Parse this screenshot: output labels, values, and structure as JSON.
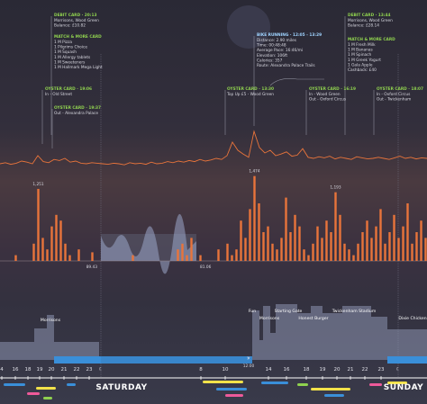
{
  "annotations": [
    {
      "title": "DEBIT CARD · 20:13",
      "lines": [
        "Morrisons, Wood Green",
        "Balance: £10.82"
      ]
    },
    {
      "title": "MATCH & MORE CARD",
      "lines": [
        "1 M Pizza",
        "1 Pilgrims Choice",
        "1 M Squash",
        "1 M Allergy tablets",
        "1 M Sweeteners",
        "1 M Hallmark Mega Light"
      ]
    },
    {
      "title": "OYSTER CARD · 19:06",
      "lines": [
        "In - Old Street"
      ]
    },
    {
      "title": "OYSTER CARD · 19:37",
      "lines": [
        "Out - Alexandra Palace"
      ]
    },
    {
      "title": "BIKE RUNNING · 12:05 - 13:29",
      "lines": [
        "Distance: 2.90 miles",
        "Time: 00:48:48",
        "Average Pace: 16:46/mi",
        "Elevation: 106ft",
        "Calories: 357",
        "Route: Alexandra Palace Trails"
      ]
    },
    {
      "title": "OYSTER CARD · 13:30",
      "lines": [
        "Top Up £5 - Wood Green"
      ]
    },
    {
      "title": "OYSTER CARD · 16:19",
      "lines": [
        "In - Wood Green",
        "Out - Oxford Circus"
      ]
    },
    {
      "title": "OYSTER CARD · 18:07",
      "lines": [
        "In - Oxford Circus",
        "Out - Twickenham"
      ]
    },
    {
      "title": "DEBIT CARD · 13:44",
      "lines": [
        "Morrisons, Wood Green",
        "Balance: £28.14"
      ]
    },
    {
      "title": "MATCH & MORE CARD",
      "lines": [
        "1 M Fresh Milk",
        "1 M Bananas",
        "1 M Spinach",
        "1 M Greek Yogurt",
        "1 Gala Apple",
        "Cashback: £40"
      ]
    }
  ],
  "places": [
    "Morrisons",
    "Fun",
    "Morrisons",
    "Starting Gate",
    "Honest Burger",
    "Twickenham Stadium",
    "Dixie Chicken"
  ],
  "band_labels": [
    "89.43",
    "81.06"
  ],
  "timeline": {
    "ticks": [
      "4",
      "16",
      "18",
      "19",
      "20",
      "21",
      "22",
      "23",
      "8",
      "10",
      "14",
      "16",
      "18",
      "19",
      "20",
      "21",
      "22",
      "23"
    ],
    "days": [
      "SATURDAY",
      "SUNDAY"
    ],
    "noon": "12:00"
  },
  "chart_data": [
    {
      "type": "line",
      "color": "#e8743b",
      "ylim": [
        0,
        100
      ],
      "values": [
        30,
        32,
        29,
        31,
        35,
        33,
        30,
        45,
        34,
        32,
        38,
        36,
        40,
        33,
        35,
        31,
        30,
        32,
        31,
        30,
        29,
        31,
        30,
        28,
        32,
        30,
        31,
        29,
        33,
        30,
        31,
        34,
        32,
        35,
        33,
        36,
        34,
        38,
        35,
        37,
        40,
        38,
        45,
        70,
        55,
        48,
        42,
        90,
        60,
        50,
        55,
        45,
        48,
        52,
        44,
        46,
        58,
        42,
        40,
        43,
        41,
        44,
        39,
        42,
        40,
        38,
        43,
        41,
        39,
        40,
        42,
        40,
        38,
        41,
        44,
        40,
        42,
        39,
        41,
        40
      ]
    },
    {
      "type": "bar",
      "color": "#e8743b",
      "ylim": [
        0,
        1500
      ],
      "values": [
        0,
        0,
        0,
        100,
        0,
        0,
        0,
        300,
        1251,
        400,
        200,
        600,
        800,
        700,
        300,
        100,
        0,
        200,
        0,
        0,
        150,
        0,
        0,
        0,
        0,
        0,
        0,
        0,
        0,
        100,
        0,
        0,
        0,
        0,
        0,
        0,
        0,
        0,
        0,
        200,
        300,
        100,
        400,
        0,
        100,
        0,
        0,
        0,
        200,
        0,
        300,
        100,
        200,
        700,
        400,
        900,
        1474,
        1000,
        500,
        600,
        300,
        200,
        400,
        1100,
        500,
        800,
        600,
        200,
        100,
        300,
        600,
        400,
        700,
        500,
        1193,
        800,
        300,
        200,
        100,
        300,
        500,
        700,
        400,
        600,
        900,
        300,
        500,
        800,
        400,
        600,
        1000,
        300,
        500,
        700,
        400
      ],
      "value_labels": [
        null,
        null,
        null,
        null,
        null,
        null,
        null,
        null,
        "1,251",
        null,
        null,
        null,
        null,
        null,
        null,
        null,
        null,
        null,
        null,
        null,
        null,
        null,
        null,
        null,
        null,
        null,
        null,
        null,
        null,
        null,
        null,
        null,
        null,
        null,
        null,
        null,
        null,
        null,
        null,
        null,
        null,
        null,
        null,
        null,
        null,
        null,
        null,
        null,
        null,
        null,
        null,
        null,
        null,
        null,
        null,
        null,
        "1,474",
        null,
        null,
        null,
        null,
        null,
        null,
        null,
        null,
        null,
        null,
        null,
        null,
        null,
        null,
        null,
        null,
        null,
        "1,193",
        null,
        null,
        null,
        null,
        null,
        null,
        null,
        null,
        null,
        null,
        null,
        null,
        null,
        null,
        null,
        null,
        null,
        null,
        null,
        null
      ]
    }
  ]
}
